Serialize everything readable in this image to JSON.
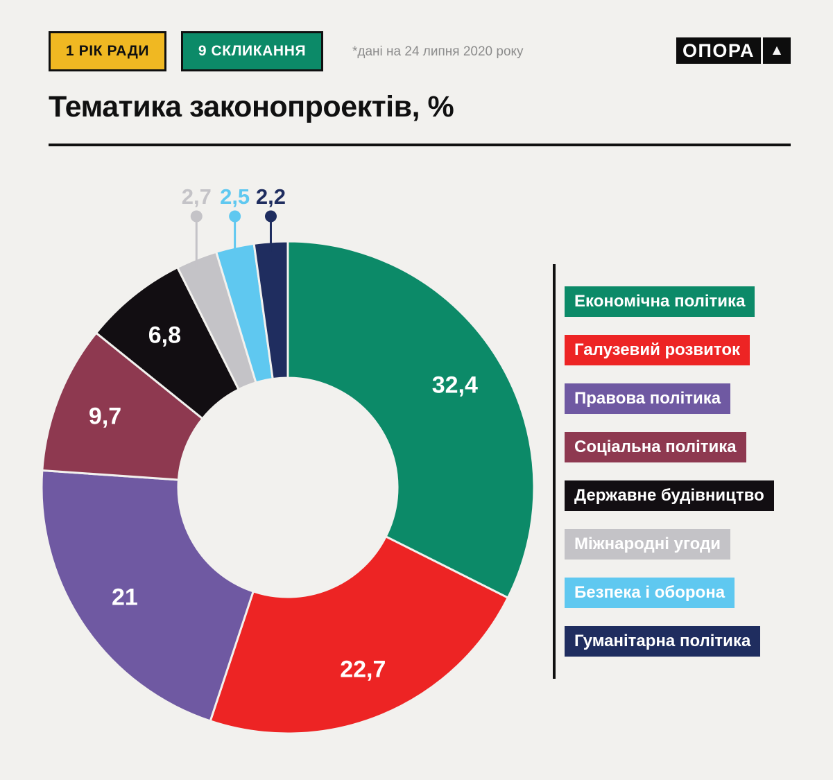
{
  "header": {
    "badge_year": "1 РІК РАДИ",
    "badge_convocation": "9 СКЛИКАННЯ",
    "note": "*дані на 24 липня 2020 року",
    "logo_text": "ОПОРА",
    "logo_triangle": "▲"
  },
  "title": "Тематика законопроектів, %",
  "colors": {
    "background": "#f2f1ee",
    "badge_year_bg": "#f0b822",
    "badge_convocation_bg": "#0c8a68",
    "note_text": "#8c8c8c",
    "line": "#101010"
  },
  "chart_data": {
    "type": "pie",
    "style": "donut",
    "title": "Тематика законопроектів, %",
    "unit": "%",
    "direction": "clockwise",
    "start_angle_deg": 0,
    "legend_position": "right",
    "slices": [
      {
        "name": "economic-policy",
        "label": "Економічна політика",
        "value": 32.4,
        "display": "32,4",
        "color": "#0c8a68",
        "callout": false
      },
      {
        "name": "sectoral-development",
        "label": "Галузевий розвиток",
        "value": 22.7,
        "display": "22,7",
        "color": "#ed2424",
        "callout": false
      },
      {
        "name": "legal-policy",
        "label": "Правова політика",
        "value": 21,
        "display": "21",
        "color": "#6f59a2",
        "callout": false
      },
      {
        "name": "social-policy",
        "label": "Соціальна політика",
        "value": 9.7,
        "display": "9,7",
        "color": "#8e3950",
        "callout": false
      },
      {
        "name": "state-building",
        "label": "Державне будівництво",
        "value": 6.8,
        "display": "6,8",
        "color": "#120e12",
        "callout": false
      },
      {
        "name": "international-agreements",
        "label": "Міжнародні угоди",
        "value": 2.7,
        "display": "2,7",
        "color": "#c4c3c7",
        "callout": true
      },
      {
        "name": "security-defense",
        "label": "Безпека і оборона",
        "value": 2.5,
        "display": "2,5",
        "color": "#5fc8f0",
        "callout": true
      },
      {
        "name": "humanitarian-policy",
        "label": "Гуманітарна політика",
        "value": 2.2,
        "display": "2,2",
        "color": "#1f2d5f",
        "callout": true
      }
    ]
  }
}
